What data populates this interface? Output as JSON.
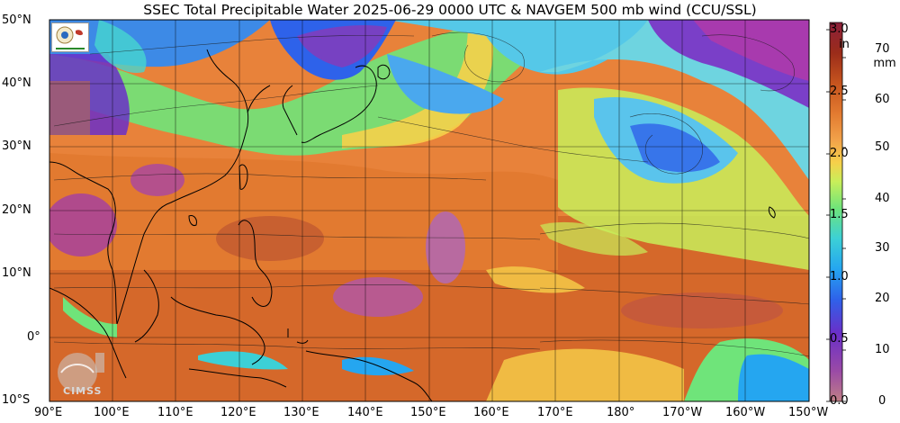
{
  "title": "SSEC Total Precipitable Water  2025-06-29 0000 UTC & NAVGEM 500 mb wind (CCU/SSL)",
  "map": {
    "lat_labels": [
      "50°N",
      "40°N",
      "30°N",
      "20°N",
      "10°N",
      "0°",
      "10°S"
    ],
    "lon_labels": [
      "90°E",
      "100°E",
      "110°E",
      "120°E",
      "130°E",
      "140°E",
      "150°E",
      "160°E",
      "170°E",
      "180°",
      "170°W",
      "160°W",
      "150°W"
    ],
    "lat_range": [
      -10,
      50
    ],
    "lon_range": [
      90,
      210
    ]
  },
  "colorbar": {
    "in_unit": "in",
    "mm_unit": "mm",
    "in_ticks": [
      "3.0",
      "2.5",
      "2.0",
      "1.5",
      "1.0",
      "0.5",
      "0.0"
    ],
    "mm_ticks": [
      "70",
      "60",
      "50",
      "40",
      "30",
      "20",
      "10",
      "0"
    ],
    "colors": [
      "#c07f86",
      "#8a3ab8",
      "#6a2fc8",
      "#2e62ea",
      "#25a6f0",
      "#3cd0d6",
      "#6fe47a",
      "#c8ee5a",
      "#f6d04a",
      "#f2a24a",
      "#e27a30",
      "#c6541e",
      "#9b2c1a",
      "#8c1f3a"
    ]
  },
  "logos": {
    "cimss_text": "CIMSS"
  }
}
